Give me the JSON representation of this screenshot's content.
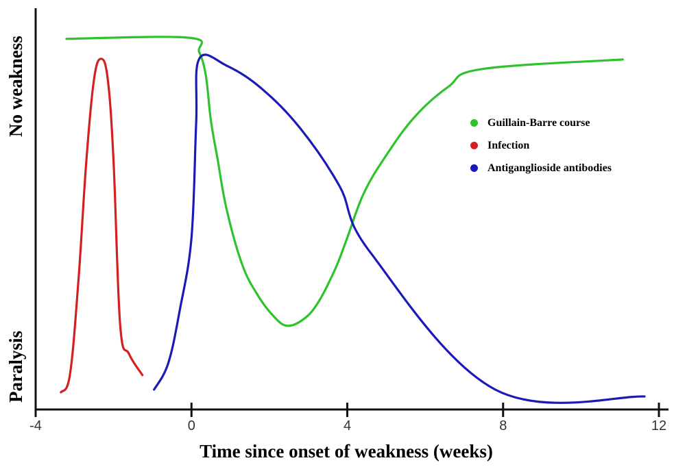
{
  "chart_data": {
    "type": "line",
    "title": "",
    "xlabel": "Time since onset of weakness (weeks)",
    "ylabel_top": "No weakness",
    "ylabel_bottom": "Paralysis",
    "xlim": [
      -4,
      12
    ],
    "ylim": [
      0,
      100
    ],
    "x_ticks": [
      -4,
      0,
      4,
      8,
      12
    ],
    "x_tick_labels": [
      "-4",
      "0",
      "4",
      "8",
      "12"
    ],
    "grid": false,
    "legend_position": "right",
    "series": [
      {
        "name": "Guillain-Barre course",
        "color": "#2fc22f",
        "x": [
          -3.21,
          -0.07,
          0.2,
          0.37,
          0.5,
          0.67,
          0.9,
          1.3,
          1.69,
          2.1,
          2.46,
          2.9,
          3.27,
          3.7,
          3.98,
          4.42,
          5.0,
          5.74,
          6.6,
          7.46,
          11.07
        ],
        "y": [
          97.0,
          97.3,
          93.5,
          87.3,
          75.5,
          65.6,
          52.5,
          38.0,
          30.1,
          24.5,
          21.9,
          23.8,
          28.3,
          37.0,
          44.4,
          56.5,
          66.5,
          76.7,
          84.5,
          89.1,
          91.6
        ]
      },
      {
        "name": "Infection",
        "color": "#d42020",
        "x": [
          -3.35,
          -3.12,
          -2.9,
          -2.7,
          -2.5,
          -2.32,
          -2.15,
          -2.0,
          -1.83,
          -1.6,
          -1.26
        ],
        "y": [
          4.5,
          9.1,
          34.0,
          65.0,
          86.5,
          91.8,
          86.5,
          65.0,
          22.0,
          14.5,
          9.0
        ]
      },
      {
        "name": "Antiganglioside antibodies",
        "color": "#1a1ab8",
        "x": [
          -0.96,
          -0.6,
          -0.3,
          0.0,
          0.12,
          0.2,
          0.9,
          1.8,
          2.8,
          3.8,
          4.6,
          7.8,
          11.63
        ],
        "y": [
          5.2,
          12.0,
          26.0,
          45.0,
          75.0,
          91.8,
          90.0,
          84.0,
          73.5,
          58.5,
          41.0,
          5.2,
          3.4
        ]
      }
    ]
  }
}
